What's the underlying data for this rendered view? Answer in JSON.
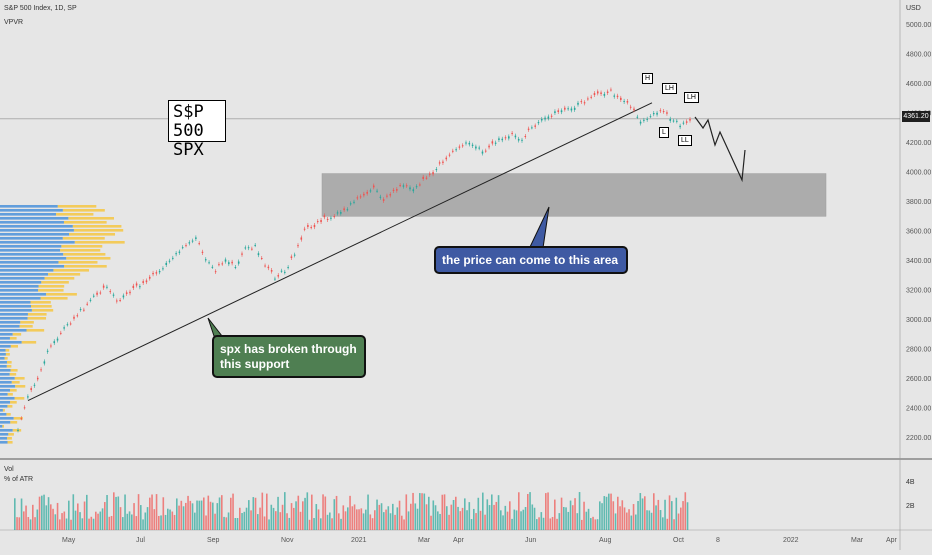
{
  "header": {
    "symbol": "S&P 500 Index, 1D, SP",
    "indicator": "VPVR",
    "currency": "USD"
  },
  "ticker_label": {
    "line1": "S$P 500",
    "line2": "SPX"
  },
  "last_price": "4361.20",
  "callouts": {
    "area": "the price can come to this area",
    "support_line1": "spx has broken through",
    "support_line2": "this support"
  },
  "structure_points": [
    "H",
    "LH",
    "LH",
    "L",
    "LL"
  ],
  "volume_pane": {
    "title": "Vol",
    "subtitle": "% of ATR",
    "ticks": [
      "4B",
      "2B"
    ]
  },
  "colors": {
    "up": "#26a69a",
    "down": "#ef5350",
    "vp_up": "#4a90d9",
    "vp_down": "#f4c542",
    "zone": "#9e9e9e"
  },
  "chart_data": {
    "type": "line",
    "title": "S&P 500 Index, 1D, SP",
    "xlabel": "",
    "ylabel": "USD",
    "x_ticks": [
      "May",
      "Jul",
      "Sep",
      "Nov",
      "2021",
      "Mar",
      "Apr",
      "Jun",
      "Aug",
      "Oct",
      "8",
      "2022",
      "Mar",
      "Apr"
    ],
    "y_ticks": [
      2200,
      2400,
      2600,
      2800,
      3000,
      3200,
      3400,
      3600,
      3800,
      4000,
      4200,
      4400,
      4600,
      4800,
      5000
    ],
    "ylim": [
      2060,
      5100
    ],
    "series": [
      {
        "values": [
          2250,
          2480,
          2600,
          2780,
          2880,
          2960,
          3040,
          3100,
          3180,
          3220,
          3130,
          3160,
          3230,
          3260,
          3320,
          3380,
          3440,
          3500,
          3560,
          3400,
          3330,
          3420,
          3360,
          3480,
          3500,
          3380,
          3290,
          3330,
          3450,
          3600,
          3640,
          3680,
          3710,
          3740,
          3800,
          3850,
          3900,
          3800,
          3870,
          3910,
          3880,
          3950,
          4000,
          4070,
          4130,
          4180,
          4200,
          4140,
          4190,
          4230,
          4250,
          4230,
          4300,
          4360,
          4390,
          4420,
          4440,
          4470,
          4500,
          4530,
          4545,
          4480,
          4450,
          4350,
          4390,
          4420,
          4370,
          4320,
          4361
        ]
      }
    ],
    "zone": {
      "low": 3700,
      "high": 3990
    },
    "trendline": {
      "from": 2450,
      "to": 4470
    }
  }
}
